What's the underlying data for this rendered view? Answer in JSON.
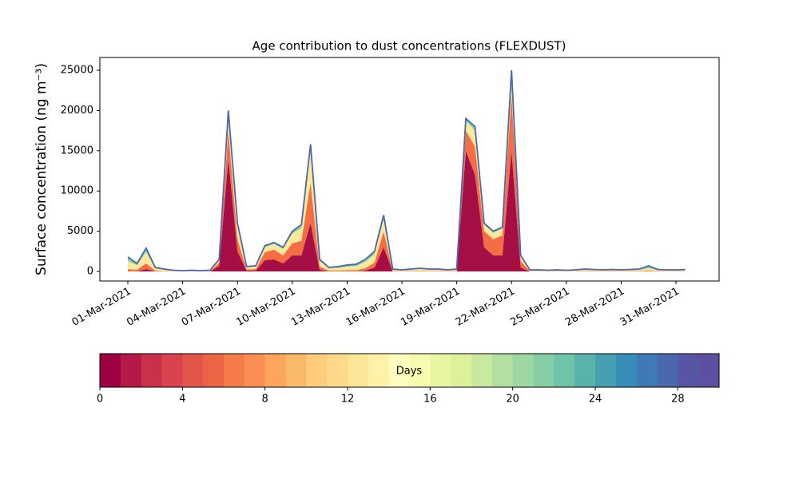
{
  "chart_data": {
    "type": "stackedarea",
    "title": "Age contribution to dust concentrations (FLEXDUST)",
    "y_label": "Surface concentration (ng m⁻³)",
    "x": [
      0,
      0.5,
      1,
      1.5,
      2,
      2.5,
      3,
      3.5,
      4,
      4.5,
      5,
      5.5,
      6,
      6.5,
      7,
      7.5,
      8,
      8.5,
      9,
      9.5,
      10,
      10.5,
      11,
      11.5,
      12,
      12.5,
      13,
      13.5,
      14,
      14.5,
      15,
      15.5,
      16,
      16.5,
      17,
      17.5,
      18,
      18.5,
      19,
      19.5,
      20,
      20.5,
      21,
      21.5,
      22,
      22.5,
      23,
      23.5,
      24,
      24.5,
      25,
      25.5,
      26,
      26.5,
      27,
      27.5,
      28,
      28.5,
      29,
      29.5,
      30,
      30.5
    ],
    "series": [
      {
        "color": "#a50f45",
        "values": [
          0,
          0,
          300,
          0,
          0,
          0,
          0,
          0,
          0,
          0,
          700,
          14000,
          2500,
          100,
          100,
          1400,
          1500,
          1000,
          2000,
          2000,
          6000,
          200,
          0,
          0,
          0,
          0,
          100,
          500,
          3000,
          0,
          0,
          0,
          0,
          0,
          0,
          0,
          0,
          15000,
          12000,
          3000,
          2000,
          2000,
          15000,
          500,
          0,
          0,
          0,
          0,
          0,
          0,
          0,
          0,
          0,
          0,
          0,
          0,
          0,
          0,
          0,
          0,
          0,
          0
        ]
      },
      {
        "color": "#f46d43",
        "values": [
          300,
          200,
          700,
          100,
          60,
          30,
          20,
          30,
          20,
          30,
          400,
          3500,
          1500,
          150,
          200,
          1000,
          1200,
          1000,
          1500,
          1800,
          5000,
          400,
          100,
          100,
          150,
          150,
          300,
          600,
          2000,
          60,
          40,
          60,
          80,
          60,
          60,
          40,
          60,
          2500,
          3500,
          2000,
          2000,
          2500,
          7000,
          800,
          40,
          40,
          30,
          40,
          30,
          40,
          60,
          50,
          40,
          50,
          40,
          50,
          60,
          100,
          50,
          40,
          40,
          50
        ]
      },
      {
        "color": "#fde999",
        "values": [
          1000,
          550,
          1400,
          250,
          150,
          75,
          50,
          75,
          50,
          75,
          300,
          2000,
          1700,
          250,
          300,
          600,
          700,
          800,
          1200,
          1600,
          4000,
          700,
          300,
          350,
          450,
          500,
          800,
          1000,
          1500,
          150,
          100,
          150,
          200,
          150,
          150,
          100,
          150,
          1200,
          2000,
          800,
          800,
          800,
          2500,
          500,
          100,
          100,
          75,
          100,
          75,
          100,
          150,
          125,
          100,
          125,
          100,
          125,
          150,
          300,
          125,
          100,
          100,
          125
        ]
      },
      {
        "color": "#86cfa5",
        "values": [
          500,
          250,
          500,
          150,
          90,
          45,
          30,
          45,
          30,
          45,
          100,
          500,
          300,
          100,
          100,
          200,
          200,
          200,
          300,
          400,
          800,
          200,
          100,
          150,
          200,
          250,
          300,
          400,
          500,
          90,
          60,
          90,
          120,
          90,
          90,
          60,
          90,
          300,
          500,
          200,
          200,
          200,
          500,
          200,
          60,
          60,
          45,
          60,
          45,
          60,
          90,
          75,
          60,
          75,
          60,
          75,
          90,
          300,
          75,
          60,
          60,
          75
        ]
      }
    ],
    "line_color": "#4a68ae",
    "xlim": [
      -1.53,
      32.36
    ],
    "xticks": [
      {
        "value": 0,
        "label": "01-Mar-2021"
      },
      {
        "value": 3,
        "label": "04-Mar-2021"
      },
      {
        "value": 6,
        "label": "07-Mar-2021"
      },
      {
        "value": 9,
        "label": "10-Mar-2021"
      },
      {
        "value": 12,
        "label": "13-Mar-2021"
      },
      {
        "value": 15,
        "label": "16-Mar-2021"
      },
      {
        "value": 18,
        "label": "19-Mar-2021"
      },
      {
        "value": 21,
        "label": "22-Mar-2021"
      },
      {
        "value": 24,
        "label": "25-Mar-2021"
      },
      {
        "value": 27,
        "label": "28-Mar-2021"
      },
      {
        "value": 30,
        "label": "31-Mar-2021"
      }
    ],
    "ylim": [
      -1190,
      26590
    ],
    "yticks": [
      0,
      5000,
      10000,
      15000,
      20000,
      25000
    ],
    "colorbar": {
      "label": "Days",
      "lim": [
        0,
        30
      ],
      "ticks": [
        0,
        4,
        8,
        12,
        16,
        20,
        24,
        28
      ],
      "colors": [
        "#9e0142",
        "#b41947",
        "#c9314b",
        "#d8434e",
        "#e45549",
        "#ed6445",
        "#f67b4a",
        "#f98f52",
        "#fca55d",
        "#fdb96a",
        "#fecc7b",
        "#fed98a",
        "#fee699",
        "#fff1a8",
        "#fffebe",
        "#f6fbb0",
        "#e9f6a1",
        "#dbf19a",
        "#c8e99e",
        "#b3e0a2",
        "#9ed7a4",
        "#86cfa5",
        "#6ec4a6",
        "#59b3aa",
        "#46a0b1",
        "#388db8",
        "#3d7ab7",
        "#4a68ae",
        "#5656a5",
        "#5e4fa2"
      ]
    }
  }
}
